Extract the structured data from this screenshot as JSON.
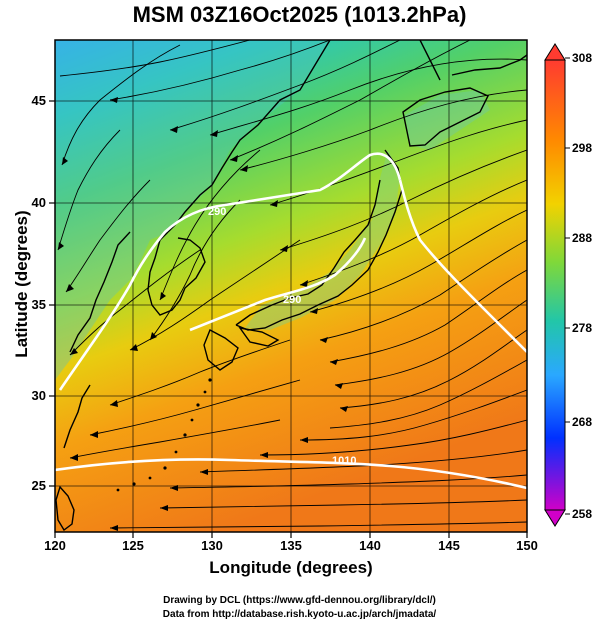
{
  "title": "MSM 03Z16Oct2025 (1013.2hPa)",
  "axes": {
    "xlabel": "Longitude (degrees)",
    "ylabel": "Latitude  (degrees)",
    "x_ticks": [
      "120",
      "125",
      "130",
      "135",
      "140",
      "145",
      "150"
    ],
    "y_ticks": [
      "45",
      "40",
      "35",
      "30",
      "25"
    ]
  },
  "colorbar": {
    "labels": [
      "308",
      "298",
      "288",
      "278",
      "268",
      "258"
    ],
    "colors": [
      "#ff3b30",
      "#ff8a00",
      "#f2d200",
      "#7fd83a",
      "#22c6a8",
      "#2aa8ff",
      "#0030ff",
      "#d000c8"
    ]
  },
  "contours": {
    "labels": [
      "290",
      "290",
      "1010"
    ]
  },
  "footer": {
    "line1": "Drawing by DCL (https://www.gfd-dennou.org/library/dcl/)",
    "line2": "Data from http://database.rish.kyoto-u.ac.jp/arch/jmadata/"
  }
}
